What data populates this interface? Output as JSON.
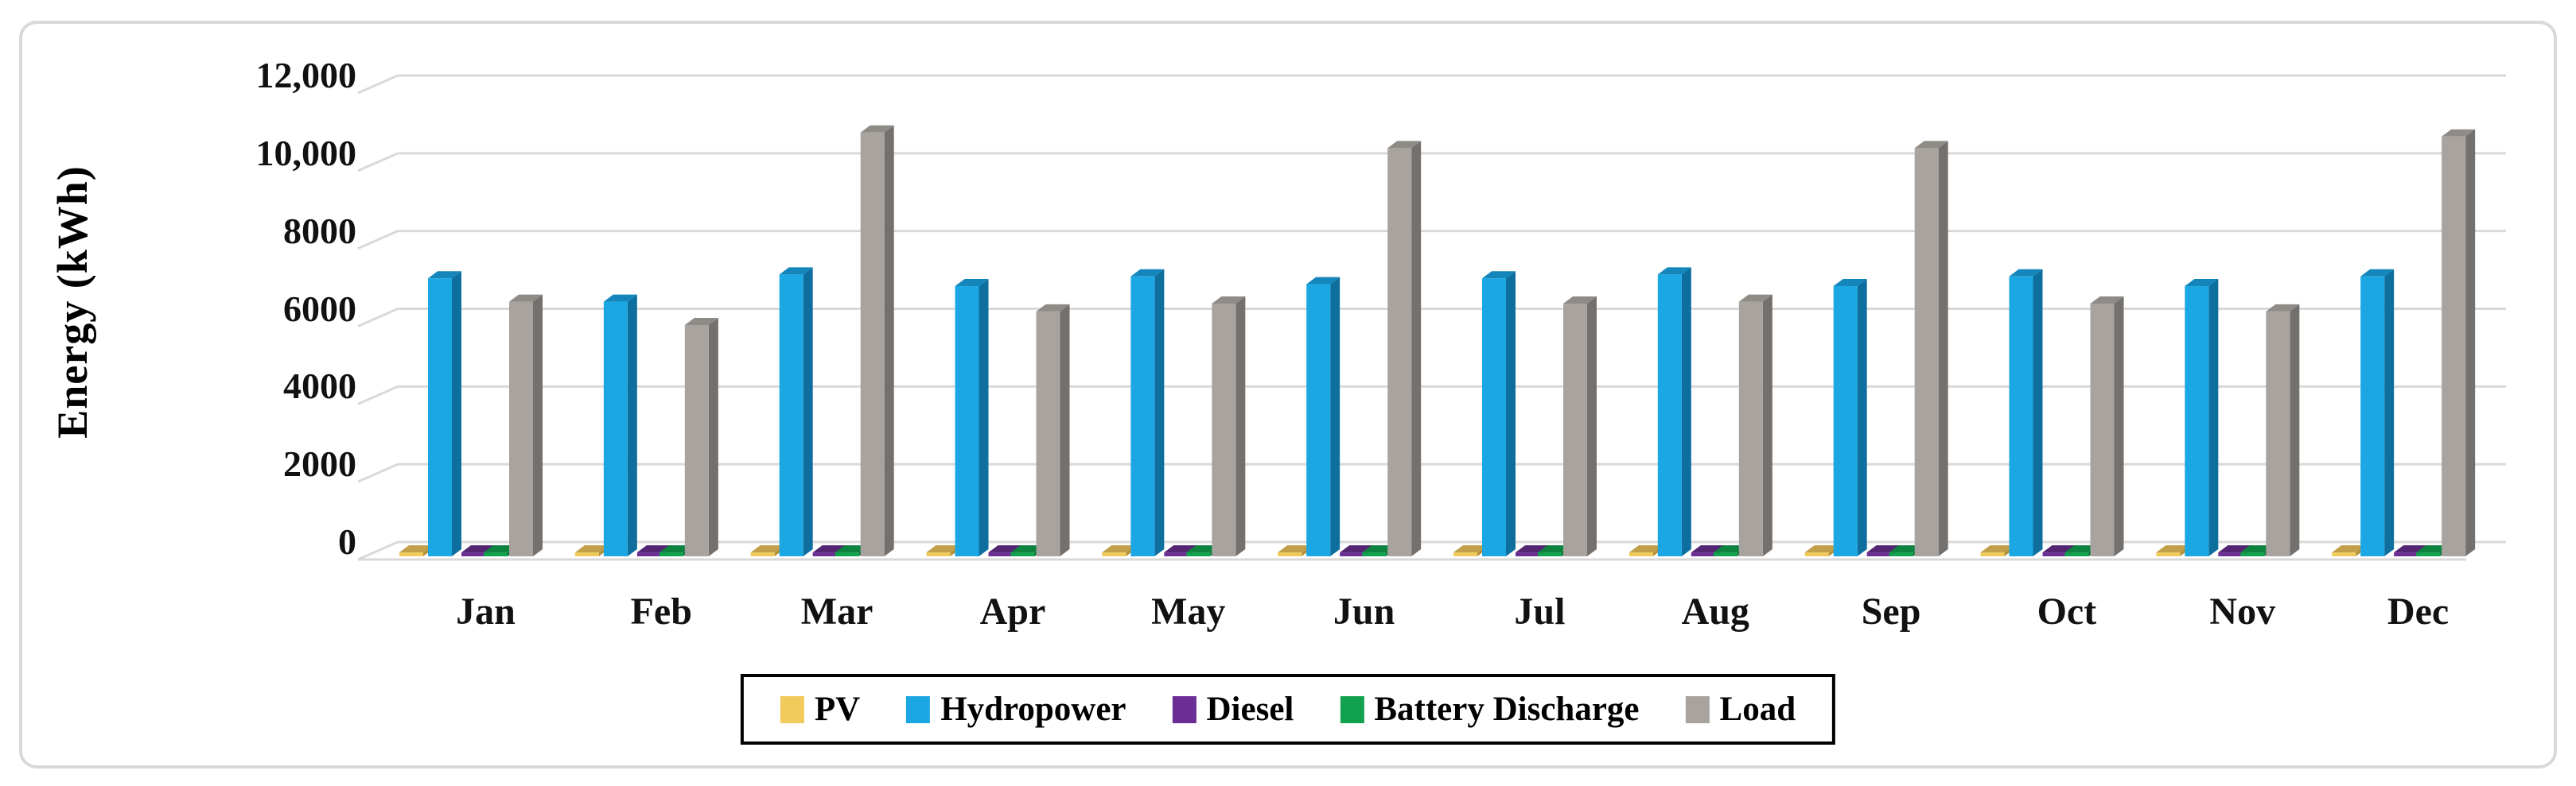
{
  "figure": {
    "background": "#FFFFFF",
    "border_color": "#D9D9D9",
    "gridline_color": "#D9D9D9"
  },
  "chart_data": {
    "type": "bar",
    "style": "3d-clustered-column",
    "title": "",
    "xlabel": "",
    "ylabel": "Energy (kWh)",
    "ylim": [
      0,
      12000
    ],
    "y_ticks": [
      0,
      2000,
      4000,
      6000,
      8000,
      10000,
      12000
    ],
    "y_tick_labels_desc": [
      "12,000",
      "10,000",
      "8000",
      "6000",
      "4000",
      "2000",
      "0"
    ],
    "grid": "horizontal",
    "legend_position": "bottom",
    "categories": [
      "Jan",
      "Feb",
      "Mar",
      "Apr",
      "May",
      "Jun",
      "Jul",
      "Aug",
      "Sep",
      "Oct",
      "Nov",
      "Dec"
    ],
    "series": [
      {
        "name": "PV",
        "color": "#F0CA5A",
        "side_color": "#B3913C",
        "top_color": "#C2A04A",
        "values": [
          100,
          100,
          100,
          100,
          100,
          100,
          100,
          100,
          100,
          100,
          100,
          100
        ]
      },
      {
        "name": "Hydropower",
        "color": "#1BA7E3",
        "side_color": "#0E6F9F",
        "top_color": "#1486BC",
        "values": [
          7150,
          6550,
          7250,
          6950,
          7200,
          7000,
          7150,
          7250,
          6950,
          7200,
          6950,
          7200
        ]
      },
      {
        "name": "Diesel",
        "color": "#6B2E94",
        "side_color": "#46205F",
        "top_color": "#542573",
        "values": [
          100,
          100,
          100,
          100,
          100,
          100,
          100,
          100,
          100,
          100,
          100,
          100
        ]
      },
      {
        "name": "Battery Discharge",
        "color": "#12A14E",
        "side_color": "#0A6B33",
        "top_color": "#0E833F",
        "values": [
          100,
          100,
          100,
          100,
          100,
          100,
          100,
          100,
          100,
          100,
          100,
          100
        ]
      },
      {
        "name": "Load",
        "color": "#A8A39E",
        "side_color": "#74706D",
        "top_color": "#8F8B87",
        "values": [
          6550,
          5950,
          10900,
          6300,
          6500,
          10500,
          6500,
          6550,
          10500,
          6500,
          6300,
          10800
        ]
      }
    ]
  }
}
